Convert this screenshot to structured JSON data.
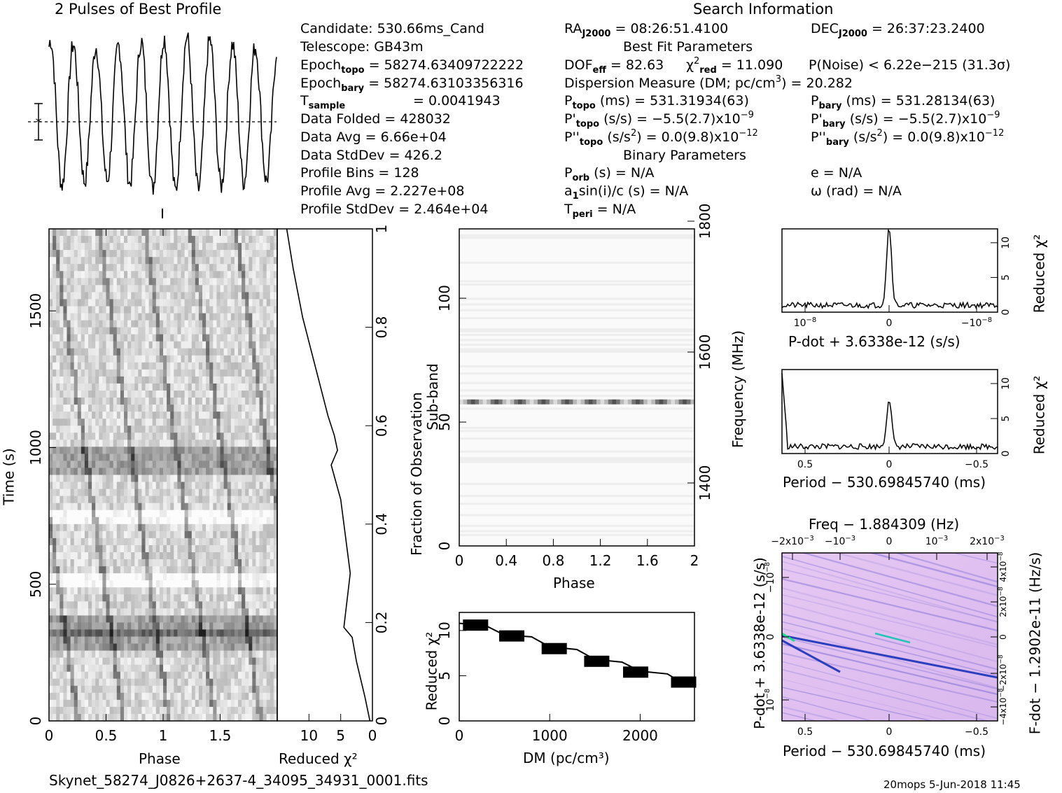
{
  "header": {
    "profile_title": "2 Pulses of Best Profile",
    "search_title": "Search Information",
    "best_fit_title": "Best Fit Parameters",
    "binary_title": "Binary Parameters",
    "footer_file": "Skynet_58274_J0826+2637-4_34095_34931_0001.fits",
    "footer_stamp": "20mops  5-Jun-2018 11:45"
  },
  "info_left": {
    "candidate": "Candidate:  530.66ms_Cand",
    "telescope": "Telescope:  GB43m",
    "epoch_topo_val": " = 58274.63409722222",
    "epoch_bary_val": " = 58274.63103356316",
    "tsample_val": "=   0.0041943",
    "data_folded": "Data Folded      =   428032",
    "data_avg": "Data Avg         =   6.66e+04",
    "data_stddev": "Data StdDev      =   426.2",
    "profile_bins": "Profile Bins     =   128",
    "profile_avg": "Profile Avg      =   2.227e+08",
    "profile_stddev": "Profile StdDev   =   2.464e+04"
  },
  "info_mid": {
    "ra_val": " = 08:26:51.4100",
    "dof_val": " = 82.63",
    "chi_val": " = 11.090",
    "dm_line": "Dispersion Measure (DM; pc/cm",
    "dm_val": ") = 20.282",
    "ptopo": " (ms) =  531.31934(63)",
    "pdtopo": " (s/s) = −5.5(2.7)x10",
    "pdtopo_exp": "−9",
    "pddtopo": " (s/s",
    "pddtopo_val": ") = 0.0(9.8)x10",
    "pddtopo_exp": "−12",
    "porb": " (s) = N/A",
    "a1": "a",
    "a1_rest": "sin(i)/c (s) = N/A",
    "tperi": " = N/A"
  },
  "info_right": {
    "dec_val": " = 26:37:23.2400",
    "pnoise": "P(Noise) < 6.22e−215  (31.3σ)",
    "pbary": " (ms) =  531.28134(63)",
    "pdbary": " (s/s) = −5.5(2.7)x10",
    "pdbary_exp": "−9",
    "pddbary": " (s/s",
    "pddbary_val": ") = 0.0(9.8)x10",
    "pddbary_exp": "−12",
    "ecc": "e = N/A",
    "omega": "ω (rad) = N/A"
  },
  "chart_data": [
    {
      "type": "line",
      "name": "profile",
      "title": "2 Pulses of Best Profile",
      "x": [
        0,
        0.1,
        0.2,
        0.3,
        0.4,
        0.5,
        0.6,
        0.7,
        0.8,
        0.9,
        1.0,
        1.1,
        1.2,
        1.3,
        1.4,
        1.5,
        1.6,
        1.7,
        1.8,
        1.9,
        2.0
      ],
      "values": [
        0.85,
        0.15,
        0.95,
        0.1,
        0.88,
        0.12,
        0.9,
        0.1,
        0.92,
        0.15,
        0.85,
        0.15,
        0.95,
        0.1,
        0.88,
        0.12,
        0.9,
        0.1,
        0.92,
        0.15,
        0.85
      ]
    },
    {
      "type": "heatmap",
      "name": "time-phase",
      "xlabel": "Phase",
      "ylabel": "Time (s)",
      "xlim": [
        0,
        2
      ],
      "ylim": [
        0,
        1800
      ],
      "xticks": [
        "0",
        "0.5",
        "1",
        "1.5"
      ],
      "yticks": [
        "0",
        "500",
        "1000",
        "1500"
      ],
      "dark_rows_s": [
        300,
        350,
        930,
        980
      ],
      "light_rows_s": [
        520,
        740
      ]
    },
    {
      "type": "line",
      "name": "chi2-vs-fraction",
      "xlabel": "Reduced χ²",
      "ylabel": "Fraction of Observation",
      "xlim": [
        0,
        15
      ],
      "ylim": [
        0,
        1
      ],
      "xticks": [
        "10",
        "5",
        "0"
      ],
      "yticks": [
        "0",
        "0.2",
        "0.4",
        "0.6",
        "0.8",
        "1"
      ],
      "x": [
        0.4,
        1.2,
        2.5,
        3.2,
        4.5,
        3.5,
        5.0,
        6.5,
        5.5,
        6.0,
        7.0,
        9.0,
        11.0,
        12.5,
        13.5
      ],
      "y": [
        0.0,
        0.05,
        0.12,
        0.17,
        0.19,
        0.3,
        0.45,
        0.52,
        0.55,
        0.58,
        0.62,
        0.72,
        0.82,
        0.92,
        1.0
      ]
    },
    {
      "type": "heatmap",
      "name": "subband-phase",
      "xlabel": "Phase",
      "ylabel": "Sub-band",
      "y2label": "Frequency (MHz)",
      "xlim": [
        0,
        2
      ],
      "ylim": [
        0,
        128
      ],
      "xticks": [
        "0",
        "0.4",
        "0.8",
        "1.2",
        "1.6",
        "2"
      ],
      "yticks": [
        "0",
        "50",
        "100"
      ],
      "y2ticks": [
        "1400",
        "1600",
        "1800"
      ],
      "bright_subband": 58
    },
    {
      "type": "line",
      "name": "chi2-vs-dm",
      "xlabel": "DM (pc/cm³)",
      "ylabel": "Reduced χ²",
      "xlim": [
        0,
        2600
      ],
      "ylim": [
        0,
        12
      ],
      "xticks": [
        "0",
        "1000",
        "2000"
      ],
      "yticks": [
        "0",
        "5",
        "10"
      ],
      "x": [
        0,
        300,
        500,
        800,
        1000,
        1300,
        1500,
        1800,
        2000,
        2300,
        2450,
        2600
      ],
      "values": [
        10.8,
        10.5,
        9.5,
        9.3,
        8.2,
        7.9,
        6.8,
        6.5,
        5.5,
        5.2,
        4.3,
        4.2
      ]
    },
    {
      "type": "line",
      "name": "chi2-vs-pdot",
      "xlabel": "P-dot + 3.6338e-12 (s/s)",
      "ylabel": "Reduced χ²",
      "yticks": [
        "0",
        "5",
        "10"
      ],
      "xticks": [
        "10",
        "0",
        "−10"
      ],
      "xtick_exp": "−8",
      "ylim": [
        0,
        12
      ],
      "peak": 11.2
    },
    {
      "type": "line",
      "name": "chi2-vs-period",
      "xlabel": "Period − 530.69845740 (ms)",
      "ylabel": "Reduced χ²",
      "yticks": [
        "0",
        "5",
        "10"
      ],
      "xticks": [
        "0.5",
        "0",
        "−0.5"
      ],
      "ylim": [
        0,
        12
      ],
      "peak": 6.8,
      "edge_peak": 11.5
    },
    {
      "type": "heatmap",
      "name": "p-pdot",
      "title": "Freq − 1.884309 (Hz)",
      "xlabel": "Period − 530.69845740 (ms)",
      "ylabel": "P-dot + 3.6338e-12 (s/s)",
      "y2label": "F-dot − 1.2902e-11 (Hz/s)",
      "xticks": [
        "0.5",
        "0",
        "−0.5"
      ],
      "x2ticks": [
        "−2x10",
        "−10",
        "0",
        "10",
        "2x10"
      ],
      "x2tick_exp": "−3",
      "yticks": [
        "10",
        "0",
        "−10"
      ],
      "ytick_exp": "−8",
      "y2ticks": [
        "−4x10",
        "−2x10",
        "0",
        "2x10",
        "4x10"
      ],
      "y2tick_exp": "−8"
    }
  ]
}
